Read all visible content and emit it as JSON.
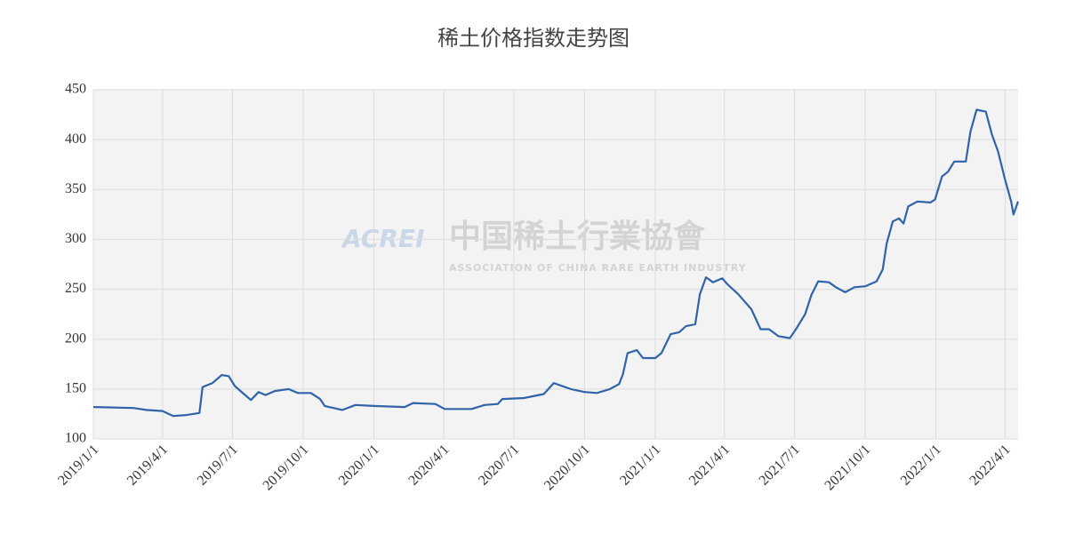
{
  "chart_data": {
    "type": "line",
    "title": "稀土价格指数走势图",
    "watermark": {
      "logo": "ACREI",
      "name": "中国稀土行業協會",
      "subtitle": "ASSOCIATION OF CHINA RARE EARTH INDUSTRY"
    },
    "x": [
      "2019/1/1",
      "2019/2/22",
      "2019/3/11",
      "2019/4/1",
      "2019/4/15",
      "2019/5/2",
      "2019/5/19",
      "2019/5/23",
      "2019/6/5",
      "2019/6/17",
      "2019/6/26",
      "2019/7/4",
      "2019/7/16",
      "2019/7/25",
      "2019/8/4",
      "2019/8/13",
      "2019/8/25",
      "2019/9/12",
      "2019/9/24",
      "2019/10/11",
      "2019/10/23",
      "2019/10/29",
      "2019/11/21",
      "2019/12/8",
      "2020/1/1",
      "2020/2/10",
      "2020/2/21",
      "2020/3/21",
      "2020/4/2",
      "2020/5/7",
      "2020/5/24",
      "2020/6/10",
      "2020/6/16",
      "2020/7/14",
      "2020/8/9",
      "2020/8/22",
      "2020/9/13",
      "2020/10/1",
      "2020/10/17",
      "2020/11/3",
      "2020/11/15",
      "2020/11/20",
      "2020/11/26",
      "2020/12/8",
      "2020/12/16",
      "2021/1/1",
      "2021/1/9",
      "2021/1/21",
      "2021/2/1",
      "2021/2/10",
      "2021/2/22",
      "2021/2/28",
      "2021/3/8",
      "2021/3/17",
      "2021/3/29",
      "2021/4/5",
      "2021/4/19",
      "2021/5/6",
      "2021/5/18",
      "2021/5/29",
      "2021/6/10",
      "2021/6/25",
      "2021/7/3",
      "2021/7/15",
      "2021/7/23",
      "2021/8/1",
      "2021/8/15",
      "2021/8/24",
      "2021/9/5",
      "2021/9/17",
      "2021/10/1",
      "2021/10/16",
      "2021/10/24",
      "2021/10/29",
      "2021/11/6",
      "2021/11/14",
      "2021/11/20",
      "2021/11/26",
      "2021/12/8",
      "2021/12/25",
      "2021/12/31",
      "2022/1/9",
      "2022/1/17",
      "2022/1/25",
      "2022/2/9",
      "2022/2/15",
      "2022/2/23",
      "2022/3/7",
      "2022/3/15",
      "2022/3/23",
      "2022/4/1",
      "2022/4/9",
      "2022/4/12",
      "2022/4/18"
    ],
    "series": [
      {
        "name": "稀土价格指数",
        "color": "#2f64a8",
        "values": [
          132,
          131,
          129,
          128,
          123,
          124,
          126,
          152,
          156,
          164,
          163,
          153,
          145,
          139,
          147,
          144,
          148,
          150,
          146,
          146,
          140,
          133,
          129,
          134,
          133,
          132,
          136,
          135,
          130,
          130,
          134,
          135,
          140,
          141,
          145,
          156,
          150,
          147,
          146,
          150,
          155,
          165,
          186,
          189,
          181,
          181,
          186,
          205,
          207,
          213,
          215,
          245,
          262,
          257,
          261,
          255,
          245,
          230,
          210,
          210,
          203,
          201,
          210,
          225,
          244,
          258,
          257,
          252,
          247,
          252,
          253,
          258,
          270,
          296,
          318,
          321,
          316,
          333,
          338,
          337,
          340,
          363,
          368,
          378,
          378,
          408,
          430,
          428,
          405,
          388,
          360,
          338,
          325,
          338
        ]
      }
    ],
    "xlim": [
      "2019/1/1",
      "2022/4/18"
    ],
    "xticks": [
      "2019/1/1",
      "2019/4/1",
      "2019/7/1",
      "2019/10/1",
      "2020/1/1",
      "2020/4/1",
      "2020/7/1",
      "2020/10/1",
      "2021/1/1",
      "2021/4/1",
      "2021/7/1",
      "2021/10/1",
      "2022/1/1",
      "2022/4/1"
    ],
    "ylim": [
      100,
      450
    ],
    "yticks": [
      100,
      150,
      200,
      250,
      300,
      350,
      400,
      450
    ],
    "grid": true
  }
}
